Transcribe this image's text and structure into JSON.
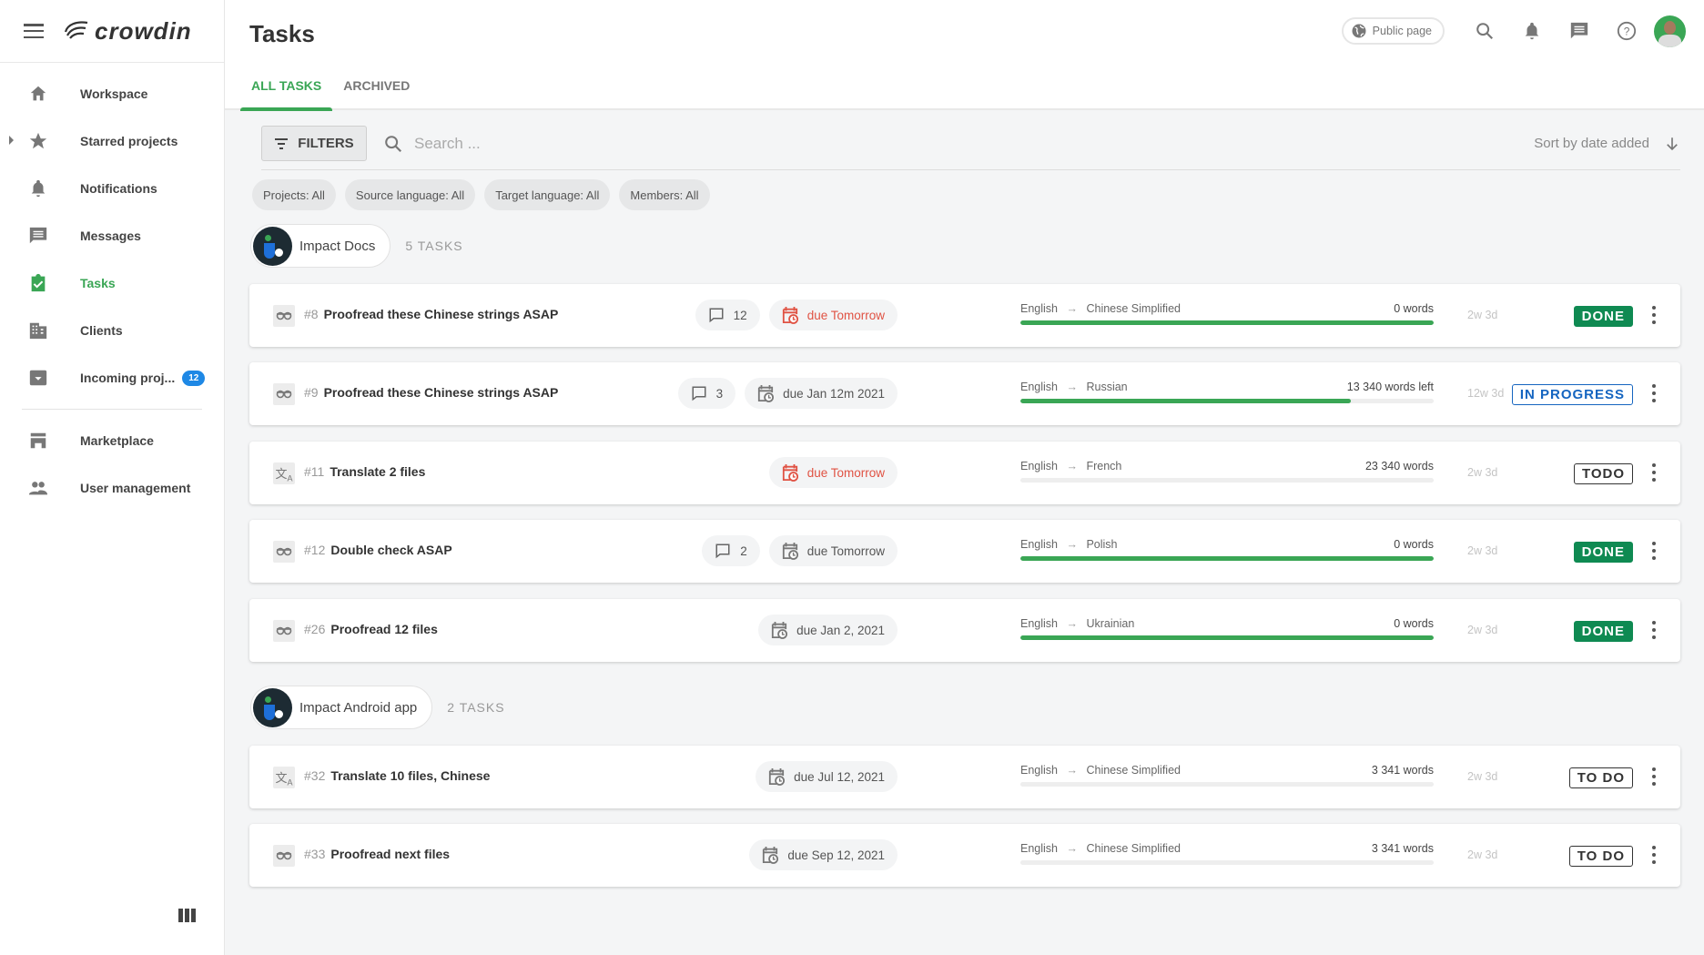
{
  "app": {
    "logo_text": "crowdin"
  },
  "sidebar": {
    "items": [
      {
        "label": "Workspace",
        "icon": "home-icon"
      },
      {
        "label": "Starred projects",
        "icon": "star-icon",
        "expandable": true
      },
      {
        "label": "Notifications",
        "icon": "bell-icon"
      },
      {
        "label": "Messages",
        "icon": "message-icon"
      },
      {
        "label": "Tasks",
        "icon": "tasks-icon",
        "active": true
      },
      {
        "label": "Clients",
        "icon": "building-icon"
      },
      {
        "label": "Incoming proj...",
        "icon": "inbox-icon",
        "badge": "12"
      },
      {
        "label": "Marketplace",
        "icon": "store-icon"
      },
      {
        "label": "User management",
        "icon": "people-icon"
      }
    ]
  },
  "header": {
    "title": "Tasks",
    "tabs": [
      {
        "label": "ALL TASKS",
        "active": true
      },
      {
        "label": "ARCHIVED"
      }
    ],
    "public_page": "Public page"
  },
  "toolbar": {
    "filters_label": "FILTERS",
    "search_placeholder": "Search ...",
    "sort_label": "Sort by date added"
  },
  "chips": [
    "Projects: All",
    "Source language: All",
    "Target language: All",
    "Members: All"
  ],
  "colors": {
    "accent": "#3aa655",
    "done": "#0f8a52",
    "in_progress": "#1565c0",
    "overdue": "#e05243",
    "badge": "#1e88e5"
  },
  "groups": [
    {
      "project": "Impact Docs",
      "count": "5 TASKS",
      "tasks": [
        {
          "type": "proofread",
          "id": "#8",
          "title": "Proofread these Chinese strings ASAP",
          "comments": "12",
          "due": "due Tomorrow",
          "overdue": true,
          "source": "English",
          "target": "Chinese Simplified",
          "words": "0 words",
          "progress": 100,
          "age": "2w 3d",
          "status": "DONE"
        },
        {
          "type": "proofread",
          "id": "#9",
          "title": "Proofread these Chinese strings ASAP",
          "comments": "3",
          "due": "due Jan 12m 2021",
          "overdue": false,
          "source": "English",
          "target": "Russian",
          "words": "13 340 words left",
          "progress": 80,
          "age": "12w 3d",
          "status": "IN PROGRESS"
        },
        {
          "type": "translate",
          "id": "#11",
          "title": "Translate 2 files",
          "comments": null,
          "due": "due Tomorrow",
          "overdue": true,
          "source": "English",
          "target": "French",
          "words": "23 340 words",
          "progress": 0,
          "age": "2w 3d",
          "status": "TODO"
        },
        {
          "type": "proofread",
          "id": "#12",
          "title": "Double check ASAP",
          "comments": "2",
          "due": "due Tomorrow",
          "overdue": false,
          "source": "English",
          "target": "Polish",
          "words": "0 words",
          "progress": 100,
          "age": "2w 3d",
          "status": "DONE"
        },
        {
          "type": "proofread",
          "id": "#26",
          "title": "Proofread 12 files",
          "comments": null,
          "due": "due Jan 2, 2021",
          "overdue": false,
          "source": "English",
          "target": "Ukrainian",
          "words": "0 words",
          "progress": 100,
          "age": "2w 3d",
          "status": "DONE"
        }
      ]
    },
    {
      "project": "Impact Android app",
      "count": "2 TASKS",
      "tasks": [
        {
          "type": "translate",
          "id": "#32",
          "title": "Translate 10 files, Chinese",
          "comments": null,
          "due": "due Jul 12, 2021",
          "overdue": false,
          "source": "English",
          "target": "Chinese Simplified",
          "words": "3 341 words",
          "progress": 0,
          "age": "2w 3d",
          "status": "TO DO"
        },
        {
          "type": "proofread",
          "id": "#33",
          "title": "Proofread next files",
          "comments": null,
          "due": "due Sep 12, 2021",
          "overdue": false,
          "source": "English",
          "target": "Chinese Simplified",
          "words": "3 341 words",
          "progress": 0,
          "age": "2w 3d",
          "status": "TO DO"
        }
      ]
    }
  ]
}
